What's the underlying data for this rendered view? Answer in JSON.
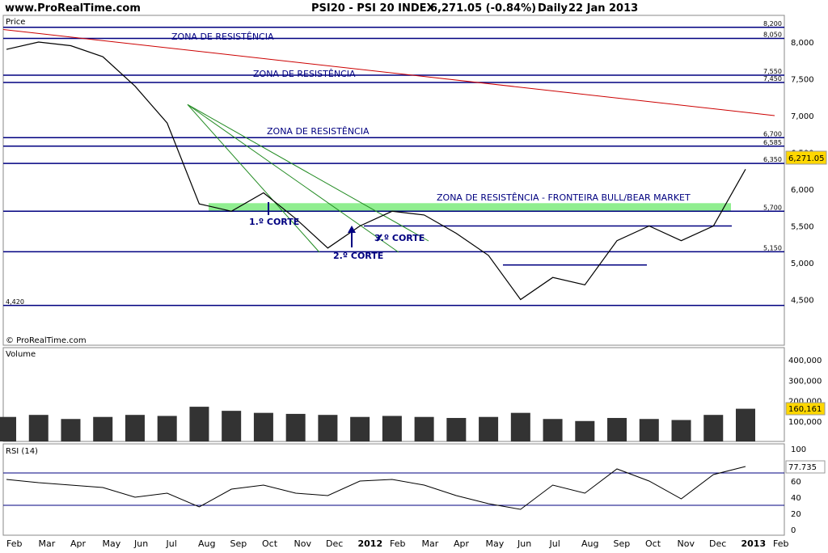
{
  "header": {
    "site": "www.ProRealTime.com",
    "instrument": "PSI20 - PSI 20 INDEX",
    "quote": "6,271.05 (-0.84%)",
    "period": "Daily",
    "date": "22 Jan 2013"
  },
  "panels": {
    "price_label": "Price",
    "watermark": "© ProRealTime.com",
    "volume_label": "Volume",
    "rsi_label": "RSI (14)"
  },
  "annotations": {
    "zone1": "ZONA DE RESISTÊNCIA",
    "zone2": "ZONA DE RESISTÊNCIA",
    "zone3": "ZONA DE RESISTÊNCIA",
    "zone4": "ZONA DE RESISTÊNCIA - FRONTEIRA BULL/BEAR MARKET",
    "corte1": "1.º CORTE",
    "corte2": "2.º CORTE",
    "corte3": "3.º CORTE"
  },
  "chart_data": [
    {
      "type": "line",
      "panel": "price",
      "ylim": [
        4300,
        8300
      ],
      "y_ticks": [
        "8,000",
        "7,500",
        "7,000",
        "6,500",
        "6,000",
        "5,500",
        "5,000",
        "4,500"
      ],
      "level_labels": [
        "8,200",
        "8,050",
        "7,550",
        "7,450",
        "6,700",
        "6,585",
        "6,350",
        "5,700",
        "5,150",
        "4,420"
      ],
      "last_value_label": "6,271.05",
      "x": [
        "2011-02",
        "2011-03",
        "2011-04",
        "2011-05",
        "2011-06",
        "2011-07",
        "2011-08",
        "2011-09",
        "2011-10",
        "2011-11",
        "2011-12",
        "2012-01",
        "2012-02",
        "2012-03",
        "2012-04",
        "2012-05",
        "2012-06",
        "2012-07",
        "2012-08",
        "2012-09",
        "2012-10",
        "2012-11",
        "2012-12",
        "2013-01"
      ],
      "series": [
        {
          "values": [
            7900,
            8000,
            7950,
            7800,
            7400,
            6900,
            5800,
            5700,
            5950,
            5600,
            5200,
            5500,
            5700,
            5650,
            5400,
            5100,
            4500,
            4800,
            4700,
            5300,
            5500,
            5300,
            5500,
            6271
          ]
        }
      ],
      "levels": [
        8200,
        8050,
        7550,
        7450,
        6700,
        6585,
        6350,
        5700,
        5500,
        5150,
        4970,
        4420
      ],
      "colors": {
        "levels": "#000080",
        "trend_red": "#cc0000",
        "fan": "#228b22",
        "zone_fill": "#90ee90",
        "price": "#000000"
      }
    },
    {
      "type": "bar",
      "panel": "volume",
      "y_ticks": [
        "400,000",
        "300,000",
        "200,000",
        "100,000"
      ],
      "ylim": [
        0,
        430000
      ],
      "last_value_label": "160,161",
      "x": [
        "2011-02",
        "2011-03",
        "2011-04",
        "2011-05",
        "2011-06",
        "2011-07",
        "2011-08",
        "2011-09",
        "2011-10",
        "2011-11",
        "2011-12",
        "2012-01",
        "2012-02",
        "2012-03",
        "2012-04",
        "2012-05",
        "2012-06",
        "2012-07",
        "2012-08",
        "2012-09",
        "2012-10",
        "2012-11",
        "2012-12",
        "2013-01"
      ],
      "values": [
        120000,
        130000,
        110000,
        120000,
        130000,
        125000,
        170000,
        150000,
        140000,
        135000,
        130000,
        120000,
        125000,
        120000,
        115000,
        120000,
        140000,
        110000,
        100000,
        115000,
        110000,
        105000,
        130000,
        160161
      ]
    },
    {
      "type": "line",
      "panel": "rsi",
      "name": "RSI (14)",
      "ylim": [
        0,
        100
      ],
      "y_ticks": [
        "100",
        "80",
        "60",
        "40",
        "20",
        "0"
      ],
      "last_value_label": "77.735",
      "levels": [
        70,
        30
      ],
      "x": [
        "2011-02",
        "2011-03",
        "2011-04",
        "2011-05",
        "2011-06",
        "2011-07",
        "2011-08",
        "2011-09",
        "2011-10",
        "2011-11",
        "2011-12",
        "2012-01",
        "2012-02",
        "2012-03",
        "2012-04",
        "2012-05",
        "2012-06",
        "2012-07",
        "2012-08",
        "2012-09",
        "2012-10",
        "2012-11",
        "2012-12",
        "2013-01"
      ],
      "values": [
        62,
        58,
        55,
        52,
        40,
        45,
        28,
        50,
        55,
        45,
        42,
        60,
        62,
        55,
        42,
        32,
        25,
        55,
        45,
        75,
        60,
        38,
        68,
        78
      ]
    }
  ],
  "x_axis": {
    "months": [
      "Feb",
      "Mar",
      "Apr",
      "May",
      "Jun",
      "Jul",
      "Aug",
      "Sep",
      "Oct",
      "Nov",
      "Dec",
      "2012",
      "Feb",
      "Mar",
      "Apr",
      "May",
      "Jun",
      "Jul",
      "Aug",
      "Sep",
      "Oct",
      "Nov",
      "Dec",
      "2013",
      "Feb"
    ]
  }
}
